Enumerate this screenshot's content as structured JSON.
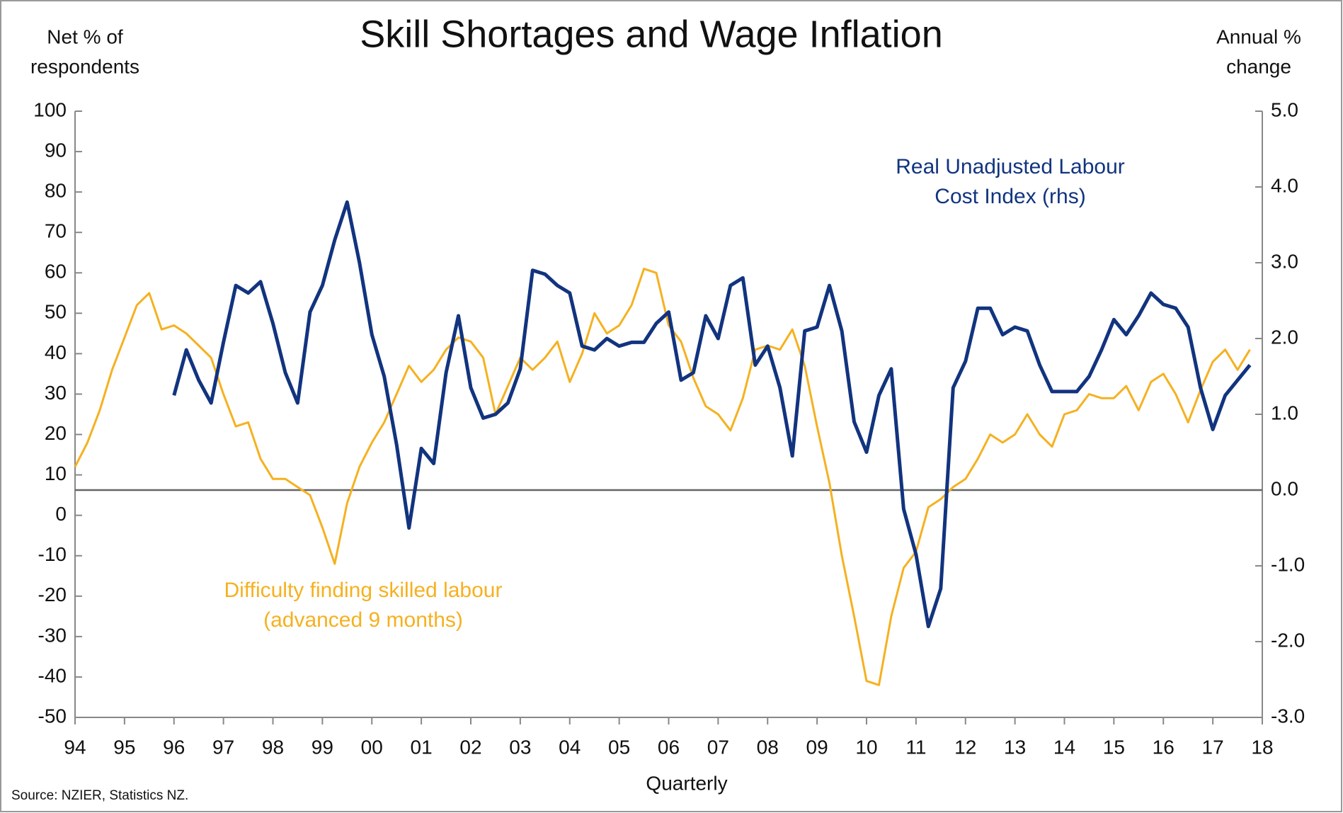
{
  "chart_data": {
    "type": "line",
    "title": "Skill Shortages and Wage Inflation",
    "y_label": [
      "Net % of",
      "respondents"
    ],
    "y2_label": [
      "Annual %",
      "change"
    ],
    "x_label": "Quarterly",
    "source": "Source: NZIER, Statistics NZ.",
    "xlim": [
      1994,
      2018
    ],
    "xticks": [
      {
        "value": 1994,
        "label": "94"
      },
      {
        "value": 1995,
        "label": "95"
      },
      {
        "value": 1996,
        "label": "96"
      },
      {
        "value": 1997,
        "label": "97"
      },
      {
        "value": 1998,
        "label": "98"
      },
      {
        "value": 1999,
        "label": "99"
      },
      {
        "value": 2000,
        "label": "00"
      },
      {
        "value": 2001,
        "label": "01"
      },
      {
        "value": 2002,
        "label": "02"
      },
      {
        "value": 2003,
        "label": "03"
      },
      {
        "value": 2004,
        "label": "04"
      },
      {
        "value": 2005,
        "label": "05"
      },
      {
        "value": 2006,
        "label": "06"
      },
      {
        "value": 2007,
        "label": "07"
      },
      {
        "value": 2008,
        "label": "08"
      },
      {
        "value": 2009,
        "label": "09"
      },
      {
        "value": 2010,
        "label": "10"
      },
      {
        "value": 2011,
        "label": "11"
      },
      {
        "value": 2012,
        "label": "12"
      },
      {
        "value": 2013,
        "label": "13"
      },
      {
        "value": 2014,
        "label": "14"
      },
      {
        "value": 2015,
        "label": "15"
      },
      {
        "value": 2016,
        "label": "16"
      },
      {
        "value": 2017,
        "label": "17"
      },
      {
        "value": 2018,
        "label": "18"
      }
    ],
    "ylim": [
      -50,
      100
    ],
    "yticks": [
      -50,
      -40,
      -30,
      -20,
      -10,
      0,
      10,
      20,
      30,
      40,
      50,
      60,
      70,
      80,
      90,
      100
    ],
    "y2lim": [
      -3,
      5
    ],
    "y2ticks": [
      {
        "value": -3,
        "label": "-3.0"
      },
      {
        "value": -2,
        "label": "-2.0"
      },
      {
        "value": -1,
        "label": "-1.0"
      },
      {
        "value": 0,
        "label": "0.0"
      },
      {
        "value": 1,
        "label": "1.0"
      },
      {
        "value": 2,
        "label": "2.0"
      },
      {
        "value": 3,
        "label": "3.0"
      },
      {
        "value": 4,
        "label": "4.0"
      },
      {
        "value": 5,
        "label": "5.0"
      }
    ],
    "series": [
      {
        "name": [
          "Difficulty finding skilled labour",
          "(advanced 9 months)"
        ],
        "color": "#f5b120",
        "axis": "y",
        "x": [
          1994,
          1994.25,
          1994.5,
          1994.75,
          1995,
          1995.25,
          1995.5,
          1995.75,
          1996,
          1996.25,
          1996.5,
          1996.75,
          1997,
          1997.25,
          1997.5,
          1997.75,
          1998,
          1998.25,
          1998.5,
          1998.75,
          1999,
          1999.25,
          1999.5,
          1999.75,
          2000,
          2000.25,
          2000.5,
          2000.75,
          2001,
          2001.25,
          2001.5,
          2001.75,
          2002,
          2002.25,
          2002.5,
          2002.75,
          2003,
          2003.25,
          2003.5,
          2003.75,
          2004,
          2004.25,
          2004.5,
          2004.75,
          2005,
          2005.25,
          2005.5,
          2005.75,
          2006,
          2006.25,
          2006.5,
          2006.75,
          2007,
          2007.25,
          2007.5,
          2007.75,
          2008,
          2008.25,
          2008.5,
          2008.75,
          2009,
          2009.25,
          2009.5,
          2009.75,
          2010,
          2010.25,
          2010.5,
          2010.75,
          2011,
          2011.25,
          2011.5,
          2011.75,
          2012,
          2012.25,
          2012.5,
          2012.75,
          2013,
          2013.25,
          2013.5,
          2013.75,
          2014,
          2014.25,
          2014.5,
          2014.75,
          2015,
          2015.25,
          2015.5,
          2015.75,
          2016,
          2016.25,
          2016.5,
          2016.75,
          2017,
          2017.25,
          2017.5,
          2017.75
        ],
        "values": [
          12,
          18,
          26,
          36,
          44,
          52,
          55,
          46,
          47,
          45,
          42,
          39,
          30,
          22,
          23,
          14,
          9,
          9,
          7,
          5,
          -3,
          -12,
          3,
          12,
          18,
          23,
          30,
          37,
          33,
          36,
          41,
          44,
          43,
          39,
          25,
          32,
          39,
          36,
          39,
          43,
          33,
          40,
          50,
          45,
          47,
          52,
          61,
          60,
          47,
          43,
          34,
          27,
          25,
          21,
          29,
          41,
          42,
          41,
          46,
          37,
          22,
          8,
          -10,
          -25,
          -41,
          -42,
          -25,
          -13,
          -9,
          2,
          4,
          7,
          9,
          14,
          20,
          18,
          20,
          25,
          20,
          17,
          25,
          26,
          30,
          29,
          29,
          32,
          26,
          33,
          35,
          30,
          23,
          31,
          38,
          41,
          36,
          41
        ]
      },
      {
        "name": [
          "Real Unadjusted Labour",
          "Cost Index (rhs)"
        ],
        "color": "#12347f",
        "axis": "y2",
        "x": [
          1996,
          1996.25,
          1996.5,
          1996.75,
          1997,
          1997.25,
          1997.5,
          1997.75,
          1998,
          1998.25,
          1998.5,
          1998.75,
          1999,
          1999.25,
          1999.5,
          1999.75,
          2000,
          2000.25,
          2000.5,
          2000.75,
          2001,
          2001.25,
          2001.5,
          2001.75,
          2002,
          2002.25,
          2002.5,
          2002.75,
          2003,
          2003.25,
          2003.5,
          2003.75,
          2004,
          2004.25,
          2004.5,
          2004.75,
          2005,
          2005.25,
          2005.5,
          2005.75,
          2006,
          2006.25,
          2006.5,
          2006.75,
          2007,
          2007.25,
          2007.5,
          2007.75,
          2008,
          2008.25,
          2008.5,
          2008.75,
          2009,
          2009.25,
          2009.5,
          2009.75,
          2010,
          2010.25,
          2010.5,
          2010.75,
          2011,
          2011.25,
          2011.5,
          2011.75,
          2012,
          2012.25,
          2012.5,
          2012.75,
          2013,
          2013.25,
          2013.5,
          2013.75,
          2014,
          2014.25,
          2014.5,
          2014.75,
          2015,
          2015.25,
          2015.5,
          2015.75,
          2016,
          2016.25,
          2016.5,
          2016.75,
          2017,
          2017.25,
          2017.5,
          2017.75
        ],
        "values": [
          1.25,
          1.85,
          1.45,
          1.15,
          1.95,
          2.7,
          2.6,
          2.75,
          2.2,
          1.55,
          1.15,
          2.35,
          2.7,
          3.3,
          3.8,
          3.0,
          2.05,
          1.5,
          0.6,
          -0.5,
          0.55,
          0.35,
          1.55,
          2.3,
          1.35,
          0.95,
          1.0,
          1.15,
          1.6,
          2.9,
          2.85,
          2.7,
          2.6,
          1.9,
          1.85,
          2.0,
          1.9,
          1.95,
          1.95,
          2.2,
          2.35,
          1.45,
          1.55,
          2.3,
          2.0,
          2.7,
          2.8,
          1.65,
          1.9,
          1.35,
          0.45,
          2.1,
          2.15,
          2.7,
          2.1,
          0.9,
          0.5,
          1.25,
          1.6,
          -0.25,
          -0.85,
          -1.8,
          -1.3,
          1.35,
          1.7,
          2.4,
          2.4,
          2.05,
          2.15,
          2.1,
          1.65,
          1.3,
          1.3,
          1.3,
          1.5,
          1.85,
          2.25,
          2.05,
          2.3,
          2.6,
          2.45,
          2.4,
          2.15,
          1.35,
          0.8,
          1.25,
          1.45,
          1.65
        ]
      }
    ]
  }
}
